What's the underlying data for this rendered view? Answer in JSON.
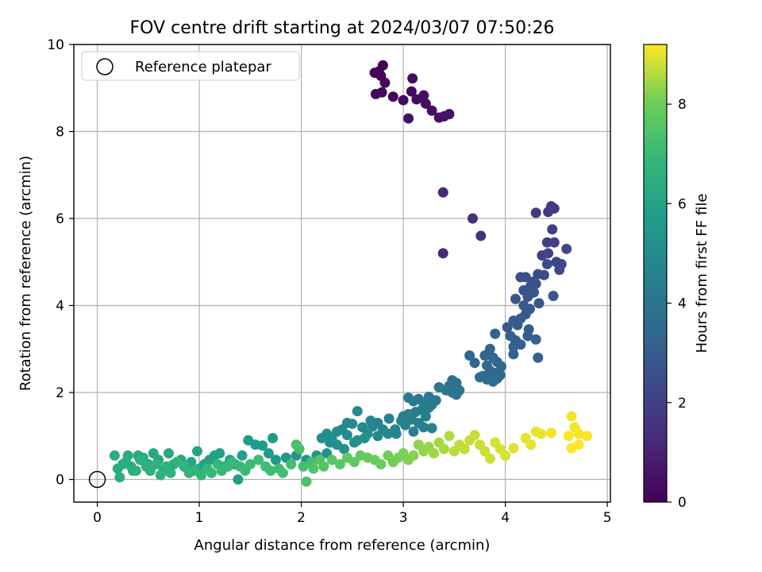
{
  "chart_data": {
    "type": "scatter",
    "title": "FOV centre drift starting at 2024/03/07 07:50:26",
    "xlabel": "Angular distance from reference (arcmin)",
    "ylabel": "Rotation from reference (arcmin)",
    "xlim": [
      -0.23,
      5.03
    ],
    "ylim": [
      -0.52,
      10.0
    ],
    "x_ticks": [
      "0",
      "1",
      "2",
      "3",
      "4",
      "5"
    ],
    "y_ticks": [
      "0",
      "2",
      "4",
      "6",
      "8",
      "10"
    ],
    "grid": true,
    "legend_position": "upper-left",
    "legend_label": "Reference platepar",
    "reference_point": {
      "x": 0,
      "y": 0
    },
    "colorbar": {
      "label": "Hours from first FF file",
      "range": [
        0,
        9.2
      ],
      "ticks": [
        "0",
        "2",
        "4",
        "6",
        "8"
      ],
      "colormap": "viridis"
    },
    "points": [
      {
        "x": 2.72,
        "y": 9.35,
        "c": 0.05
      },
      {
        "x": 2.76,
        "y": 9.38,
        "c": 0.08
      },
      {
        "x": 2.8,
        "y": 9.52,
        "c": 0.1
      },
      {
        "x": 2.78,
        "y": 9.28,
        "c": 0.12
      },
      {
        "x": 2.82,
        "y": 9.12,
        "c": 0.15
      },
      {
        "x": 2.73,
        "y": 8.86,
        "c": 0.18
      },
      {
        "x": 2.79,
        "y": 8.9,
        "c": 0.2
      },
      {
        "x": 2.9,
        "y": 8.8,
        "c": 0.22
      },
      {
        "x": 3.0,
        "y": 8.72,
        "c": 0.25
      },
      {
        "x": 3.08,
        "y": 8.92,
        "c": 0.28
      },
      {
        "x": 3.09,
        "y": 9.22,
        "c": 0.3
      },
      {
        "x": 3.13,
        "y": 8.74,
        "c": 0.32
      },
      {
        "x": 3.2,
        "y": 8.83,
        "c": 0.35
      },
      {
        "x": 3.22,
        "y": 8.64,
        "c": 0.38
      },
      {
        "x": 3.28,
        "y": 8.48,
        "c": 0.4
      },
      {
        "x": 3.05,
        "y": 8.3,
        "c": 0.42
      },
      {
        "x": 3.35,
        "y": 8.32,
        "c": 0.45
      },
      {
        "x": 3.4,
        "y": 8.35,
        "c": 0.48
      },
      {
        "x": 3.45,
        "y": 8.4,
        "c": 0.5
      },
      {
        "x": 3.39,
        "y": 6.6,
        "c": 1.2
      },
      {
        "x": 3.39,
        "y": 5.2,
        "c": 1.3
      },
      {
        "x": 3.68,
        "y": 6.0,
        "c": 1.4
      },
      {
        "x": 3.76,
        "y": 5.6,
        "c": 1.5
      },
      {
        "x": 4.3,
        "y": 6.13,
        "c": 1.75
      },
      {
        "x": 4.42,
        "y": 6.15,
        "c": 1.8
      },
      {
        "x": 4.45,
        "y": 6.28,
        "c": 1.82
      },
      {
        "x": 4.48,
        "y": 6.23,
        "c": 1.85
      },
      {
        "x": 4.46,
        "y": 5.75,
        "c": 1.9
      },
      {
        "x": 4.41,
        "y": 5.45,
        "c": 1.95
      },
      {
        "x": 4.48,
        "y": 5.45,
        "c": 2.0
      },
      {
        "x": 4.36,
        "y": 5.15,
        "c": 2.05
      },
      {
        "x": 4.42,
        "y": 5.2,
        "c": 2.1
      },
      {
        "x": 4.5,
        "y": 5.0,
        "c": 2.15
      },
      {
        "x": 4.55,
        "y": 4.95,
        "c": 2.2
      },
      {
        "x": 4.6,
        "y": 5.3,
        "c": 2.25
      },
      {
        "x": 4.53,
        "y": 4.82,
        "c": 2.3
      },
      {
        "x": 4.41,
        "y": 4.95,
        "c": 2.35
      },
      {
        "x": 4.38,
        "y": 4.7,
        "c": 2.4
      },
      {
        "x": 4.32,
        "y": 4.72,
        "c": 2.45
      },
      {
        "x": 4.28,
        "y": 4.55,
        "c": 2.5
      },
      {
        "x": 4.15,
        "y": 4.65,
        "c": 2.55
      },
      {
        "x": 4.2,
        "y": 4.65,
        "c": 2.6
      },
      {
        "x": 4.25,
        "y": 4.45,
        "c": 2.65
      },
      {
        "x": 4.3,
        "y": 4.5,
        "c": 2.7
      },
      {
        "x": 4.18,
        "y": 4.35,
        "c": 2.72
      },
      {
        "x": 4.22,
        "y": 4.2,
        "c": 2.75
      },
      {
        "x": 4.1,
        "y": 4.15,
        "c": 2.78
      },
      {
        "x": 4.28,
        "y": 4.3,
        "c": 2.8
      },
      {
        "x": 4.33,
        "y": 4.05,
        "c": 2.82
      },
      {
        "x": 4.47,
        "y": 4.22,
        "c": 2.85
      },
      {
        "x": 4.18,
        "y": 4.0,
        "c": 2.88
      },
      {
        "x": 4.24,
        "y": 3.92,
        "c": 2.9
      },
      {
        "x": 4.2,
        "y": 3.8,
        "c": 2.92
      },
      {
        "x": 4.15,
        "y": 3.7,
        "c": 2.95
      },
      {
        "x": 4.08,
        "y": 3.65,
        "c": 2.98
      },
      {
        "x": 4.12,
        "y": 3.55,
        "c": 3.0
      },
      {
        "x": 4.02,
        "y": 3.5,
        "c": 3.02
      },
      {
        "x": 4.23,
        "y": 3.45,
        "c": 3.05
      },
      {
        "x": 4.22,
        "y": 3.3,
        "c": 3.08
      },
      {
        "x": 4.1,
        "y": 3.2,
        "c": 3.1
      },
      {
        "x": 4.05,
        "y": 3.3,
        "c": 3.12
      },
      {
        "x": 4.15,
        "y": 3.1,
        "c": 3.15
      },
      {
        "x": 4.3,
        "y": 3.22,
        "c": 3.18
      },
      {
        "x": 4.08,
        "y": 3.05,
        "c": 3.2
      },
      {
        "x": 3.9,
        "y": 3.35,
        "c": 3.22
      },
      {
        "x": 4.08,
        "y": 2.88,
        "c": 3.25
      },
      {
        "x": 4.32,
        "y": 2.8,
        "c": 3.28
      },
      {
        "x": 3.85,
        "y": 3.0,
        "c": 3.3
      },
      {
        "x": 3.8,
        "y": 2.85,
        "c": 3.32
      },
      {
        "x": 3.65,
        "y": 2.85,
        "c": 3.35
      },
      {
        "x": 3.7,
        "y": 2.68,
        "c": 3.38
      },
      {
        "x": 3.88,
        "y": 2.8,
        "c": 3.4
      },
      {
        "x": 3.92,
        "y": 2.7,
        "c": 3.42
      },
      {
        "x": 3.82,
        "y": 2.62,
        "c": 3.45
      },
      {
        "x": 3.96,
        "y": 2.6,
        "c": 3.48
      },
      {
        "x": 3.85,
        "y": 2.5,
        "c": 3.5
      },
      {
        "x": 3.9,
        "y": 2.45,
        "c": 3.52
      },
      {
        "x": 3.95,
        "y": 2.4,
        "c": 3.55
      },
      {
        "x": 3.78,
        "y": 2.38,
        "c": 3.58
      },
      {
        "x": 3.82,
        "y": 2.3,
        "c": 3.6
      },
      {
        "x": 3.88,
        "y": 2.25,
        "c": 3.62
      },
      {
        "x": 3.75,
        "y": 2.35,
        "c": 3.65
      },
      {
        "x": 3.92,
        "y": 2.32,
        "c": 3.68
      },
      {
        "x": 3.48,
        "y": 2.28,
        "c": 3.75
      },
      {
        "x": 3.52,
        "y": 2.22,
        "c": 3.8
      },
      {
        "x": 3.45,
        "y": 2.15,
        "c": 3.85
      },
      {
        "x": 3.55,
        "y": 2.05,
        "c": 3.9
      },
      {
        "x": 3.48,
        "y": 2.0,
        "c": 3.95
      },
      {
        "x": 3.52,
        "y": 1.95,
        "c": 4.0
      },
      {
        "x": 3.42,
        "y": 2.05,
        "c": 4.05
      },
      {
        "x": 3.35,
        "y": 2.12,
        "c": 4.1
      },
      {
        "x": 3.32,
        "y": 1.82,
        "c": 4.12
      },
      {
        "x": 3.25,
        "y": 1.9,
        "c": 4.15
      },
      {
        "x": 3.2,
        "y": 1.75,
        "c": 4.18
      },
      {
        "x": 3.28,
        "y": 1.72,
        "c": 4.2
      },
      {
        "x": 3.15,
        "y": 1.85,
        "c": 4.22
      },
      {
        "x": 3.05,
        "y": 1.88,
        "c": 4.25
      },
      {
        "x": 3.1,
        "y": 1.8,
        "c": 4.28
      },
      {
        "x": 3.25,
        "y": 1.65,
        "c": 4.3
      },
      {
        "x": 3.18,
        "y": 1.6,
        "c": 4.32
      },
      {
        "x": 3.12,
        "y": 1.55,
        "c": 4.35
      },
      {
        "x": 3.05,
        "y": 1.5,
        "c": 4.38
      },
      {
        "x": 3.0,
        "y": 1.45,
        "c": 4.4
      },
      {
        "x": 3.08,
        "y": 1.38,
        "c": 4.42
      },
      {
        "x": 3.22,
        "y": 1.45,
        "c": 4.45
      },
      {
        "x": 3.15,
        "y": 1.3,
        "c": 4.48
      },
      {
        "x": 3.2,
        "y": 1.2,
        "c": 4.5
      },
      {
        "x": 3.28,
        "y": 1.18,
        "c": 4.52
      },
      {
        "x": 3.1,
        "y": 1.1,
        "c": 4.55
      },
      {
        "x": 3.02,
        "y": 1.25,
        "c": 4.58
      },
      {
        "x": 2.98,
        "y": 1.35,
        "c": 4.6
      },
      {
        "x": 2.86,
        "y": 1.4,
        "c": 4.62
      },
      {
        "x": 2.75,
        "y": 1.3,
        "c": 4.65
      },
      {
        "x": 2.68,
        "y": 1.35,
        "c": 4.68
      },
      {
        "x": 2.7,
        "y": 1.22,
        "c": 4.7
      },
      {
        "x": 2.8,
        "y": 1.15,
        "c": 4.72
      },
      {
        "x": 2.93,
        "y": 1.05,
        "c": 4.75
      },
      {
        "x": 2.92,
        "y": 1.15,
        "c": 4.78
      },
      {
        "x": 2.85,
        "y": 1.05,
        "c": 4.8
      },
      {
        "x": 2.75,
        "y": 1.0,
        "c": 4.82
      },
      {
        "x": 2.65,
        "y": 1.05,
        "c": 4.85
      },
      {
        "x": 2.6,
        "y": 1.2,
        "c": 4.88
      },
      {
        "x": 2.55,
        "y": 1.57,
        "c": 4.9
      },
      {
        "x": 2.5,
        "y": 1.28,
        "c": 4.92
      },
      {
        "x": 2.45,
        "y": 1.3,
        "c": 4.95
      },
      {
        "x": 2.4,
        "y": 1.15,
        "c": 4.98
      },
      {
        "x": 2.35,
        "y": 1.1,
        "c": 5.0
      },
      {
        "x": 2.45,
        "y": 1.02,
        "c": 5.02
      },
      {
        "x": 2.3,
        "y": 0.95,
        "c": 5.05
      },
      {
        "x": 2.25,
        "y": 1.05,
        "c": 5.08
      },
      {
        "x": 2.2,
        "y": 0.95,
        "c": 5.1
      },
      {
        "x": 2.28,
        "y": 0.85,
        "c": 5.12
      },
      {
        "x": 2.35,
        "y": 0.8,
        "c": 5.15
      },
      {
        "x": 2.52,
        "y": 0.85,
        "c": 5.18
      },
      {
        "x": 2.62,
        "y": 0.95,
        "c": 5.2
      },
      {
        "x": 2.55,
        "y": 0.9,
        "c": 5.22
      },
      {
        "x": 2.42,
        "y": 0.7,
        "c": 5.25
      },
      {
        "x": 2.25,
        "y": 0.6,
        "c": 5.3
      },
      {
        "x": 2.15,
        "y": 0.55,
        "c": 5.35
      },
      {
        "x": 2.05,
        "y": 0.45,
        "c": 5.4
      },
      {
        "x": 1.95,
        "y": 0.55,
        "c": 5.45
      },
      {
        "x": 1.85,
        "y": 0.5,
        "c": 5.5
      },
      {
        "x": 1.75,
        "y": 0.45,
        "c": 5.55
      },
      {
        "x": 1.72,
        "y": 0.95,
        "c": 5.6
      },
      {
        "x": 1.68,
        "y": 0.6,
        "c": 5.65
      },
      {
        "x": 1.62,
        "y": 0.78,
        "c": 5.7
      },
      {
        "x": 1.55,
        "y": 0.8,
        "c": 5.72
      },
      {
        "x": 1.48,
        "y": 0.9,
        "c": 5.75
      },
      {
        "x": 1.42,
        "y": 0.55,
        "c": 5.78
      },
      {
        "x": 1.38,
        "y": 0.0,
        "c": 5.8
      },
      {
        "x": 1.35,
        "y": 0.35,
        "c": 5.82
      },
      {
        "x": 1.3,
        "y": 0.45,
        "c": 5.85
      },
      {
        "x": 1.25,
        "y": 0.3,
        "c": 5.88
      },
      {
        "x": 1.2,
        "y": 0.6,
        "c": 5.9
      },
      {
        "x": 1.15,
        "y": 0.55,
        "c": 5.92
      },
      {
        "x": 1.1,
        "y": 0.45,
        "c": 5.95
      },
      {
        "x": 1.05,
        "y": 0.35,
        "c": 5.98
      },
      {
        "x": 1.0,
        "y": 0.25,
        "c": 6.0
      },
      {
        "x": 0.98,
        "y": 0.65,
        "c": 6.02
      },
      {
        "x": 0.92,
        "y": 0.4,
        "c": 6.05
      },
      {
        "x": 0.88,
        "y": 0.25,
        "c": 6.08
      },
      {
        "x": 0.82,
        "y": 0.45,
        "c": 6.1
      },
      {
        "x": 0.75,
        "y": 0.35,
        "c": 6.12
      },
      {
        "x": 0.7,
        "y": 0.6,
        "c": 6.15
      },
      {
        "x": 0.65,
        "y": 0.2,
        "c": 6.18
      },
      {
        "x": 0.6,
        "y": 0.45,
        "c": 6.2
      },
      {
        "x": 0.55,
        "y": 0.6,
        "c": 6.22
      },
      {
        "x": 0.5,
        "y": 0.35,
        "c": 6.25
      },
      {
        "x": 0.45,
        "y": 0.5,
        "c": 6.28
      },
      {
        "x": 0.4,
        "y": 0.55,
        "c": 6.3
      },
      {
        "x": 0.35,
        "y": 0.2,
        "c": 6.32
      },
      {
        "x": 0.3,
        "y": 0.55,
        "c": 6.35
      },
      {
        "x": 0.25,
        "y": 0.35,
        "c": 6.38
      },
      {
        "x": 0.2,
        "y": 0.25,
        "c": 6.4
      },
      {
        "x": 0.17,
        "y": 0.55,
        "c": 6.42
      },
      {
        "x": 0.22,
        "y": 0.05,
        "c": 6.45
      },
      {
        "x": 0.28,
        "y": 0.4,
        "c": 6.48
      },
      {
        "x": 0.33,
        "y": 0.3,
        "c": 6.5
      },
      {
        "x": 0.38,
        "y": 0.2,
        "c": 6.52
      },
      {
        "x": 0.42,
        "y": 0.45,
        "c": 6.55
      },
      {
        "x": 0.48,
        "y": 0.3,
        "c": 6.58
      },
      {
        "x": 0.52,
        "y": 0.2,
        "c": 6.6
      },
      {
        "x": 0.58,
        "y": 0.35,
        "c": 6.62
      },
      {
        "x": 0.62,
        "y": 0.1,
        "c": 6.65
      },
      {
        "x": 0.68,
        "y": 0.3,
        "c": 6.68
      },
      {
        "x": 0.72,
        "y": 0.15,
        "c": 6.7
      },
      {
        "x": 0.78,
        "y": 0.4,
        "c": 6.72
      },
      {
        "x": 0.85,
        "y": 0.3,
        "c": 6.75
      },
      {
        "x": 0.9,
        "y": 0.15,
        "c": 6.78
      },
      {
        "x": 0.95,
        "y": 0.2,
        "c": 6.8
      },
      {
        "x": 1.02,
        "y": 0.1,
        "c": 6.82
      },
      {
        "x": 1.08,
        "y": 0.25,
        "c": 6.85
      },
      {
        "x": 1.12,
        "y": 0.15,
        "c": 6.88
      },
      {
        "x": 1.18,
        "y": 0.35,
        "c": 6.9
      },
      {
        "x": 1.22,
        "y": 0.2,
        "c": 6.92
      },
      {
        "x": 1.28,
        "y": 0.3,
        "c": 6.95
      },
      {
        "x": 1.32,
        "y": 0.4,
        "c": 6.98
      },
      {
        "x": 1.4,
        "y": 0.3,
        "c": 7.0
      },
      {
        "x": 1.45,
        "y": 0.2,
        "c": 7.02
      },
      {
        "x": 1.5,
        "y": 0.35,
        "c": 7.05
      },
      {
        "x": 1.58,
        "y": 0.45,
        "c": 7.08
      },
      {
        "x": 1.65,
        "y": 0.3,
        "c": 7.1
      },
      {
        "x": 1.7,
        "y": 0.2,
        "c": 7.12
      },
      {
        "x": 1.78,
        "y": 0.25,
        "c": 7.15
      },
      {
        "x": 1.82,
        "y": 0.15,
        "c": 7.18
      },
      {
        "x": 1.9,
        "y": 0.35,
        "c": 7.2
      },
      {
        "x": 1.98,
        "y": 0.7,
        "c": 7.22
      },
      {
        "x": 2.02,
        "y": 0.3,
        "c": 7.25
      },
      {
        "x": 2.1,
        "y": 0.4,
        "c": 7.28
      },
      {
        "x": 1.95,
        "y": 0.8,
        "c": 7.35
      },
      {
        "x": 2.05,
        "y": -0.05,
        "c": 7.4
      },
      {
        "x": 2.12,
        "y": 0.25,
        "c": 7.45
      },
      {
        "x": 2.18,
        "y": 0.45,
        "c": 7.5
      },
      {
        "x": 2.22,
        "y": 0.3,
        "c": 7.55
      },
      {
        "x": 2.3,
        "y": 0.45,
        "c": 7.6
      },
      {
        "x": 2.38,
        "y": 0.35,
        "c": 7.65
      },
      {
        "x": 2.45,
        "y": 0.5,
        "c": 7.7
      },
      {
        "x": 2.52,
        "y": 0.4,
        "c": 7.75
      },
      {
        "x": 2.58,
        "y": 0.55,
        "c": 7.8
      },
      {
        "x": 2.65,
        "y": 0.5,
        "c": 7.85
      },
      {
        "x": 2.72,
        "y": 0.45,
        "c": 7.9
      },
      {
        "x": 2.78,
        "y": 0.35,
        "c": 7.95
      },
      {
        "x": 2.85,
        "y": 0.55,
        "c": 8.0
      },
      {
        "x": 2.9,
        "y": 0.4,
        "c": 8.05
      },
      {
        "x": 2.95,
        "y": 0.5,
        "c": 8.1
      },
      {
        "x": 3.0,
        "y": 0.6,
        "c": 8.15
      },
      {
        "x": 3.05,
        "y": 0.45,
        "c": 8.2
      },
      {
        "x": 3.1,
        "y": 0.55,
        "c": 8.25
      },
      {
        "x": 3.15,
        "y": 0.8,
        "c": 8.3
      },
      {
        "x": 3.2,
        "y": 0.65,
        "c": 8.35
      },
      {
        "x": 3.25,
        "y": 0.75,
        "c": 8.4
      },
      {
        "x": 3.3,
        "y": 0.6,
        "c": 8.45
      },
      {
        "x": 3.35,
        "y": 0.85,
        "c": 8.5
      },
      {
        "x": 3.4,
        "y": 0.7,
        "c": 8.55
      },
      {
        "x": 3.45,
        "y": 1.0,
        "c": 8.6
      },
      {
        "x": 3.5,
        "y": 0.65,
        "c": 8.65
      },
      {
        "x": 3.55,
        "y": 0.8,
        "c": 8.7
      },
      {
        "x": 3.6,
        "y": 0.7,
        "c": 8.72
      },
      {
        "x": 3.65,
        "y": 0.9,
        "c": 8.75
      },
      {
        "x": 3.7,
        "y": 1.02,
        "c": 8.78
      },
      {
        "x": 3.75,
        "y": 0.8,
        "c": 8.8
      },
      {
        "x": 3.8,
        "y": 0.65,
        "c": 8.82
      },
      {
        "x": 3.85,
        "y": 0.48,
        "c": 8.85
      },
      {
        "x": 3.9,
        "y": 0.85,
        "c": 8.88
      },
      {
        "x": 3.95,
        "y": 0.7,
        "c": 8.9
      },
      {
        "x": 4.0,
        "y": 0.55,
        "c": 8.92
      },
      {
        "x": 4.08,
        "y": 0.72,
        "c": 8.95
      },
      {
        "x": 4.2,
        "y": 0.95,
        "c": 8.98
      },
      {
        "x": 4.25,
        "y": 0.8,
        "c": 9.0
      },
      {
        "x": 4.3,
        "y": 1.1,
        "c": 9.02
      },
      {
        "x": 4.35,
        "y": 1.05,
        "c": 9.05
      },
      {
        "x": 4.45,
        "y": 1.07,
        "c": 9.08
      },
      {
        "x": 4.65,
        "y": 1.45,
        "c": 9.1
      },
      {
        "x": 4.68,
        "y": 1.2,
        "c": 9.12
      },
      {
        "x": 4.62,
        "y": 1.0,
        "c": 9.14
      },
      {
        "x": 4.72,
        "y": 1.05,
        "c": 9.15
      },
      {
        "x": 4.8,
        "y": 1.0,
        "c": 9.17
      },
      {
        "x": 4.65,
        "y": 0.72,
        "c": 9.18
      },
      {
        "x": 4.72,
        "y": 0.8,
        "c": 9.2
      }
    ]
  }
}
